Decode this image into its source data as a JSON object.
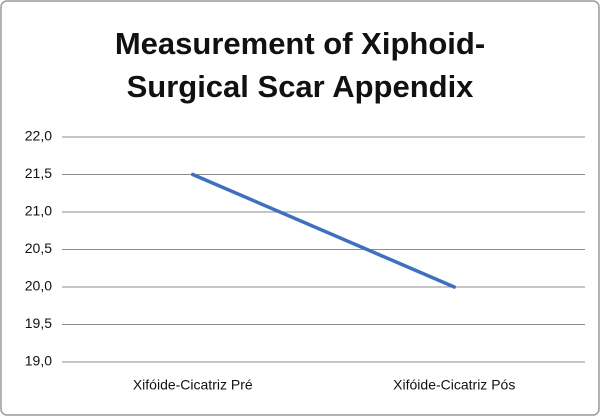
{
  "chart_data": {
    "type": "line",
    "title": [
      "Measurement of Xiphoid-",
      "Surgical Scar Appendix"
    ],
    "categories": [
      "Xifóide-Cicatriz Pré",
      "Xifóide-Cicatriz Pós"
    ],
    "values": [
      21.5,
      20.0
    ],
    "color": "#3f6fbf",
    "ylim": [
      19.0,
      22.0
    ],
    "yticks": [
      {
        "value": 19.0,
        "label": "19,0"
      },
      {
        "value": 19.5,
        "label": "19,5"
      },
      {
        "value": 20.0,
        "label": "20,0"
      },
      {
        "value": 20.5,
        "label": "20,5"
      },
      {
        "value": 21.0,
        "label": "21,0"
      },
      {
        "value": 21.5,
        "label": "21,5"
      },
      {
        "value": 22.0,
        "label": "22,0"
      }
    ],
    "grid": true
  }
}
